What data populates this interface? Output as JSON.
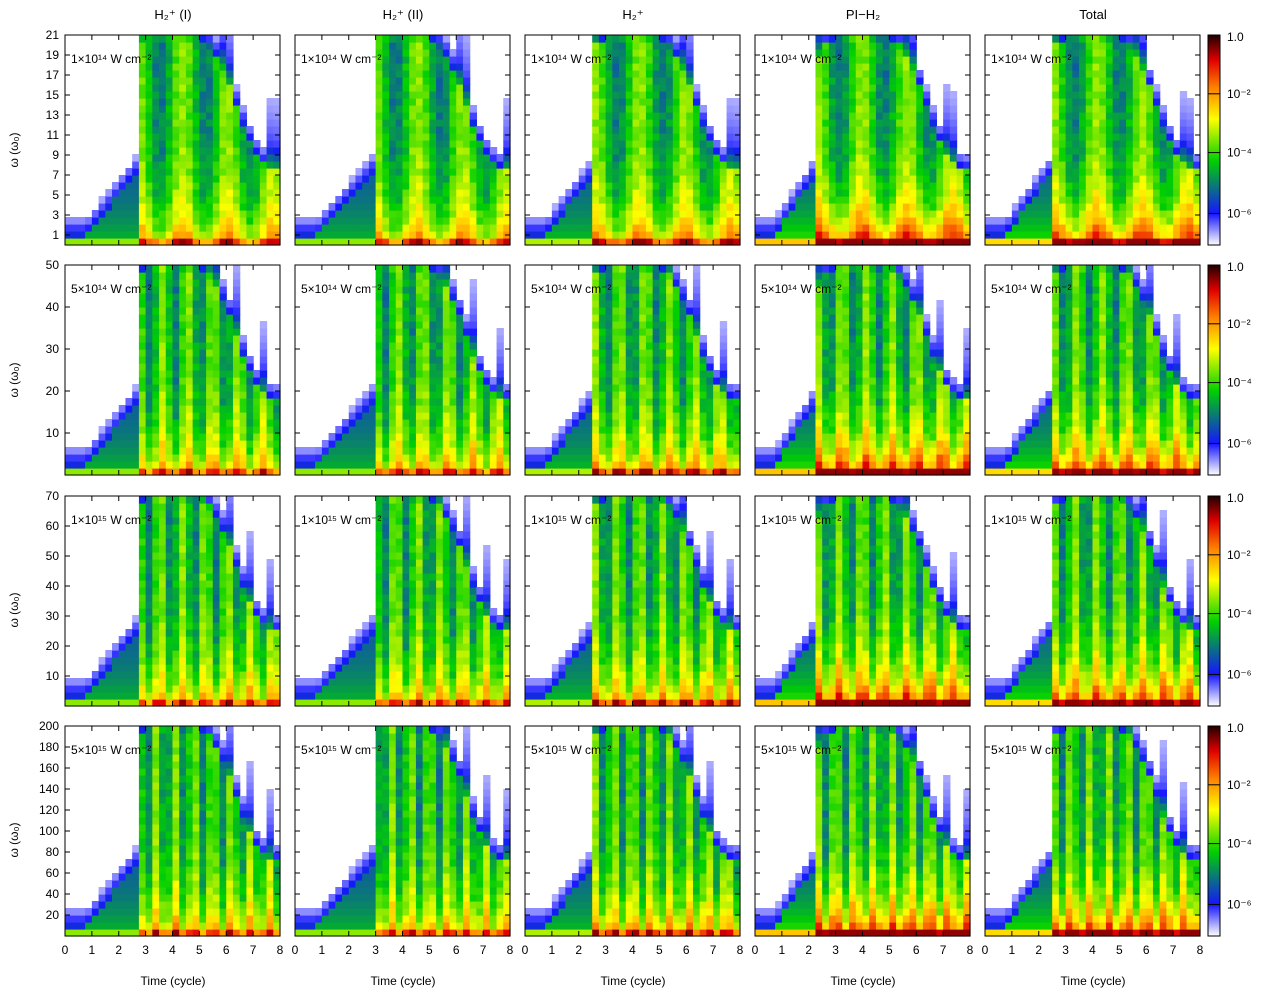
{
  "figure": {
    "columns": [
      {
        "title": "H₂⁺ (I)"
      },
      {
        "title": "H₂⁺ (II)"
      },
      {
        "title": "H₂⁺"
      },
      {
        "title": "PI−H₂"
      },
      {
        "title": "Total"
      }
    ],
    "ylabel": "ω (ω₀)",
    "xlabel": "Time (cycle)",
    "colorbar_labels": [
      "1.0",
      "10⁻²",
      "10⁻⁴",
      "10⁻⁶"
    ]
  },
  "chart_data": {
    "type": "heatmap",
    "description_units": "time-frequency spectrogram of harmonic emission",
    "x": {
      "label": "Time (cycle)",
      "range": [
        0,
        8
      ],
      "ticks": [
        0,
        1,
        2,
        3,
        4,
        5,
        6,
        7,
        8
      ]
    },
    "colorscale": {
      "scale": "log",
      "range": [
        1e-07,
        1.0
      ],
      "ticks": [
        1.0,
        0.01,
        0.0001,
        1e-06
      ],
      "colors": [
        "#ffffff",
        "#1010ff",
        "#00d000",
        "#ffff00",
        "#ff8000",
        "#e00000",
        "#200000"
      ]
    },
    "rows": [
      {
        "intensity": "1×10¹⁴ W cm⁻²",
        "ylim": [
          0,
          21
        ],
        "yticks": [
          1,
          3,
          5,
          7,
          9,
          11,
          13,
          15,
          17,
          19,
          21
        ],
        "cutoff": 21,
        "fringes": 5
      },
      {
        "intensity": "5×10¹⁴ W cm⁻²",
        "ylim": [
          0,
          50
        ],
        "yticks": [
          10,
          20,
          30,
          40,
          50
        ],
        "cutoff": 50,
        "fringes": 9
      },
      {
        "intensity": "1×10¹⁵ W cm⁻²",
        "ylim": [
          0,
          70
        ],
        "yticks": [
          10,
          20,
          30,
          40,
          50,
          60,
          70
        ],
        "cutoff": 70,
        "fringes": 10
      },
      {
        "intensity": "5×10¹⁵ W cm⁻²",
        "ylim": [
          0,
          200
        ],
        "yticks": [
          20,
          40,
          60,
          80,
          100,
          120,
          140,
          160,
          180,
          200
        ],
        "cutoff": 200,
        "fringes": 12
      }
    ],
    "panels": [
      {
        "column": "H₂⁺ (I)",
        "strength": 0.55,
        "onset": 2.7
      },
      {
        "column": "H₂⁺ (II)",
        "strength": 0.55,
        "onset": 2.9
      },
      {
        "column": "H₂⁺",
        "strength": 0.6,
        "onset": 2.6
      },
      {
        "column": "PI−H₂",
        "strength": 0.85,
        "onset": 2.3
      },
      {
        "column": "Total",
        "strength": 0.8,
        "onset": 2.5
      }
    ]
  }
}
